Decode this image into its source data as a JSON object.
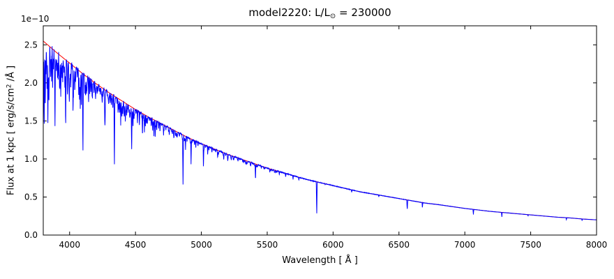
{
  "figure": {
    "background": "#ffffff"
  },
  "chart_data": {
    "type": "line",
    "title": "model2220: L/L⊙ = 230000",
    "title_parts": {
      "prefix": "model2220: L/L",
      "sub": "⊙",
      "suffix": " = 230000"
    },
    "xlabel": "Wavelength [ Å ]",
    "ylabel_parts": {
      "prefix": "Flux at 1 kpc [ erg/s/cm",
      "sup": "2",
      "suffix": " /Å ]"
    },
    "ylabel": "Flux at 1 kpc [ erg/s/cm² /Å ]",
    "y_offset_label": "1e−10",
    "xlim": [
      3800,
      8000
    ],
    "ylim": [
      0,
      2.75
    ],
    "x_ticks": [
      4000,
      4500,
      5000,
      5500,
      6000,
      6500,
      7000,
      7500,
      8000
    ],
    "x_tick_labels": [
      "4000",
      "4500",
      "5000",
      "5500",
      "6000",
      "6500",
      "7000",
      "7500",
      "8000"
    ],
    "y_ticks": [
      0.0,
      0.5,
      1.0,
      1.5,
      2.0,
      2.5
    ],
    "y_tick_labels": [
      "0.0",
      "0.5",
      "1.0",
      "1.5",
      "2.0",
      "2.5"
    ],
    "grid": false,
    "legend": null,
    "axis_color": "#000000",
    "series": [
      {
        "name": "continuum",
        "color": "#ff0000",
        "wavelengths": [
          3800,
          3900,
          4000,
          4100,
          4200,
          4300,
          4400,
          4500,
          4600,
          4700,
          4800,
          4900,
          5000,
          5100,
          5200,
          5300,
          5400,
          5500,
          5600,
          5700,
          5800,
          5900,
          6000,
          6100,
          6200,
          6300,
          6400,
          6500,
          6600,
          6700,
          6800,
          6900,
          7000,
          7100,
          7200,
          7300,
          7400,
          7500,
          7600,
          7700,
          7800,
          7900,
          8000
        ],
        "flux_1e-10": [
          2.55,
          2.4,
          2.26,
          2.12,
          1.99,
          1.87,
          1.76,
          1.65,
          1.55,
          1.46,
          1.37,
          1.28,
          1.2,
          1.13,
          1.06,
          1.0,
          0.94,
          0.88,
          0.83,
          0.78,
          0.73,
          0.69,
          0.65,
          0.61,
          0.57,
          0.54,
          0.51,
          0.48,
          0.45,
          0.42,
          0.4,
          0.375,
          0.35,
          0.33,
          0.31,
          0.295,
          0.28,
          0.265,
          0.25,
          0.235,
          0.225,
          0.21,
          0.2
        ]
      },
      {
        "name": "spectrum",
        "color": "#0000ff",
        "absorption_lines_format": "[wavelength_A, bottom_flux_1e-10, half_width_A]",
        "absorption_lines": [
          [
            3815,
            1.6,
            4
          ],
          [
            3820,
            2.05,
            3
          ],
          [
            3829,
            1.88,
            3
          ],
          [
            3835,
            1.42,
            4
          ],
          [
            3846,
            2.15,
            3
          ],
          [
            3856,
            2.02,
            3
          ],
          [
            3862,
            2.1,
            3
          ],
          [
            3871,
            1.9,
            3
          ],
          [
            3878,
            2.18,
            3
          ],
          [
            3889,
            1.38,
            4
          ],
          [
            3900,
            2.12,
            3
          ],
          [
            3913,
            2.02,
            3
          ],
          [
            3920,
            2.1,
            3
          ],
          [
            3926,
            1.92,
            3
          ],
          [
            3933,
            1.78,
            3
          ],
          [
            3947,
            2.06,
            3
          ],
          [
            3957,
            2.12,
            3
          ],
          [
            3964,
            1.88,
            3
          ],
          [
            3970,
            1.38,
            4
          ],
          [
            3983,
            2.1,
            3
          ],
          [
            3995,
            1.92,
            3
          ],
          [
            4009,
            1.92,
            3
          ],
          [
            4026,
            1.57,
            4
          ],
          [
            4035,
            2.02,
            3
          ],
          [
            4045,
            2.0,
            3
          ],
          [
            4069,
            1.82,
            3
          ],
          [
            4076,
            1.78,
            3
          ],
          [
            4089,
            1.68,
            3
          ],
          [
            4101,
            1.06,
            4
          ],
          [
            4116,
            1.86,
            3
          ],
          [
            4121,
            1.78,
            3
          ],
          [
            4131,
            1.88,
            3
          ],
          [
            4144,
            1.7,
            3
          ],
          [
            4153,
            1.84,
            3
          ],
          [
            4173,
            1.78,
            3
          ],
          [
            4185,
            1.86,
            3
          ],
          [
            4200,
            1.84,
            3
          ],
          [
            4215,
            1.88,
            3
          ],
          [
            4233,
            1.84,
            3
          ],
          [
            4253,
            1.8,
            3
          ],
          [
            4267,
            1.68,
            3
          ],
          [
            4287,
            1.82,
            3
          ],
          [
            4300,
            1.8,
            3
          ],
          [
            4317,
            1.7,
            3
          ],
          [
            4340,
            0.93,
            4
          ],
          [
            4368,
            1.58,
            3
          ],
          [
            4388,
            1.44,
            3
          ],
          [
            4415,
            1.52,
            3
          ],
          [
            4437,
            1.6,
            3
          ],
          [
            4452,
            1.62,
            3
          ],
          [
            4471,
            1.1,
            4
          ],
          [
            4481,
            1.38,
            3
          ],
          [
            4515,
            1.46,
            3
          ],
          [
            4530,
            1.42,
            3
          ],
          [
            4553,
            1.28,
            3
          ],
          [
            4568,
            1.35,
            3
          ],
          [
            4575,
            1.42,
            3
          ],
          [
            4590,
            1.45,
            3
          ],
          [
            4605,
            1.5,
            3
          ],
          [
            4620,
            1.42,
            3
          ],
          [
            4630,
            1.35,
            3
          ],
          [
            4640,
            1.3,
            3
          ],
          [
            4650,
            1.26,
            3
          ],
          [
            4661,
            1.36,
            3
          ],
          [
            4676,
            1.4,
            3
          ],
          [
            4686,
            1.35,
            3
          ],
          [
            4713,
            1.3,
            3
          ],
          [
            4751,
            1.35,
            3
          ],
          [
            4780,
            1.32,
            3
          ],
          [
            4815,
            1.3,
            3
          ],
          [
            4861,
            0.63,
            4
          ],
          [
            4880,
            1.12,
            3
          ],
          [
            4922,
            0.93,
            3
          ],
          [
            4958,
            1.15,
            3
          ],
          [
            5016,
            0.86,
            3
          ],
          [
            5048,
            1.06,
            3
          ],
          [
            5080,
            1.08,
            3
          ],
          [
            5130,
            1.05,
            3
          ],
          [
            5170,
            0.98,
            3
          ],
          [
            5243,
            0.98,
            3
          ],
          [
            5320,
            0.95,
            3
          ],
          [
            5411,
            0.71,
            3
          ],
          [
            5455,
            0.88,
            3
          ],
          [
            5592,
            0.79,
            3
          ],
          [
            5640,
            0.76,
            3
          ],
          [
            5696,
            0.73,
            3
          ],
          [
            5740,
            0.72,
            3
          ],
          [
            5876,
            0.285,
            4
          ],
          [
            5940,
            0.66,
            3
          ],
          [
            6141,
            0.56,
            3
          ],
          [
            6347,
            0.5,
            3
          ],
          [
            6371,
            0.52,
            3
          ],
          [
            6563,
            0.33,
            4
          ],
          [
            6678,
            0.355,
            3
          ],
          [
            6891,
            0.38,
            3
          ],
          [
            7065,
            0.265,
            3
          ],
          [
            7281,
            0.235,
            3
          ],
          [
            7480,
            0.25,
            3
          ],
          [
            7771,
            0.2,
            3
          ],
          [
            7890,
            0.19,
            3
          ]
        ]
      }
    ],
    "noise": {
      "base": 0.004,
      "blue_extra": 0.012,
      "decay": 900,
      "micro_line_count": 260,
      "seed": 42
    }
  }
}
